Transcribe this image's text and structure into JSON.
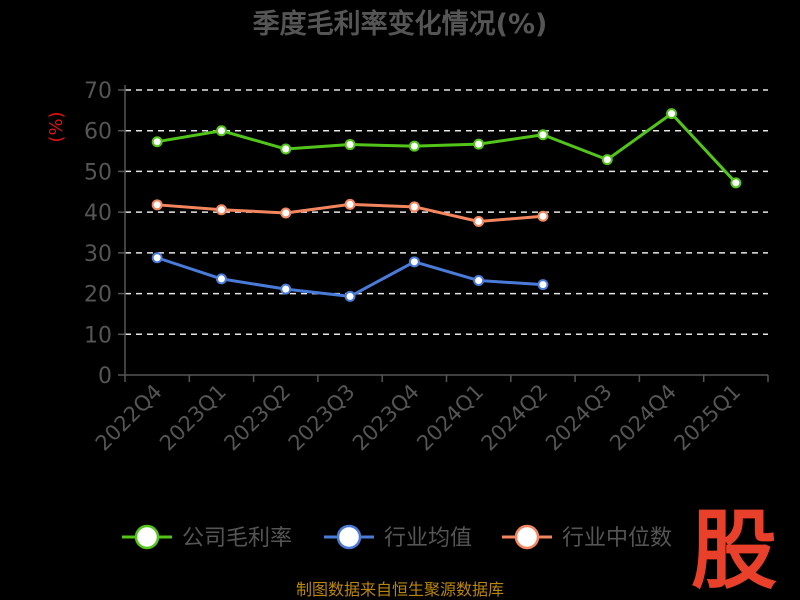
{
  "chart_data": {
    "type": "line",
    "title": "季度毛利率变化情况(%)",
    "ylabel": "(%)",
    "ylim": [
      0,
      70
    ],
    "yticks": [
      0,
      10,
      20,
      30,
      40,
      50,
      60,
      70
    ],
    "grid": true,
    "legend_position": "bottom",
    "categories": [
      "2022Q4",
      "2023Q1",
      "2023Q2",
      "2023Q3",
      "2023Q4",
      "2024Q1",
      "2024Q2",
      "2024Q3",
      "2024Q4",
      "2025Q1"
    ],
    "series": [
      {
        "name": "公司毛利率",
        "color": "#52c41a",
        "values": [
          57.3,
          60.0,
          55.5,
          56.6,
          56.2,
          56.7,
          59.0,
          52.9,
          64.2,
          47.2
        ]
      },
      {
        "name": "行业均值",
        "color": "#4a7bd8",
        "values": [
          28.8,
          23.6,
          21.1,
          19.3,
          27.8,
          23.2,
          22.2,
          null,
          null,
          null
        ]
      },
      {
        "name": "行业中位数",
        "color": "#f4865f",
        "values": [
          41.8,
          40.6,
          39.8,
          41.9,
          41.3,
          37.7,
          39.0,
          null,
          null,
          null
        ]
      }
    ]
  },
  "source_text": "制图数据来自恒生聚源数据库",
  "logo_text": "股"
}
